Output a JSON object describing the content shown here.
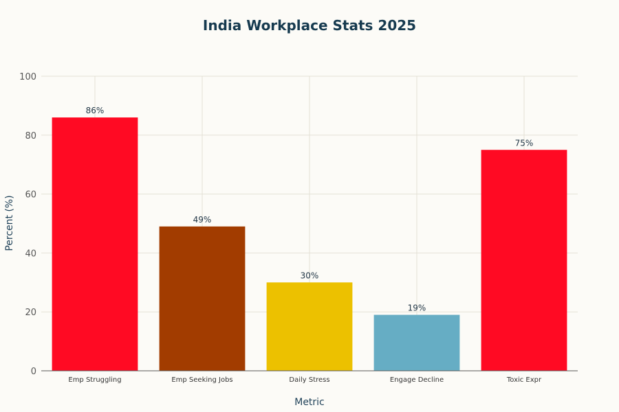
{
  "chart_data": {
    "type": "bar",
    "title": "India Workplace Stats 2025",
    "xlabel": "Metric",
    "ylabel": "Percent (%)",
    "ylim": [
      0,
      100
    ],
    "yticks": [
      0,
      20,
      40,
      60,
      80,
      100
    ],
    "categories": [
      "Emp Struggling",
      "Emp Seeking Jobs",
      "Daily Stress",
      "Engage Decline",
      "Toxic Expr"
    ],
    "values": [
      86,
      49,
      30,
      19,
      75
    ],
    "data_labels": [
      "86%",
      "49%",
      "30%",
      "19%",
      "75%"
    ],
    "colors": [
      "#ff0a23",
      "#a23c00",
      "#ecc100",
      "#66adc4",
      "#ff0a23"
    ],
    "grid": true,
    "legend": "none"
  }
}
